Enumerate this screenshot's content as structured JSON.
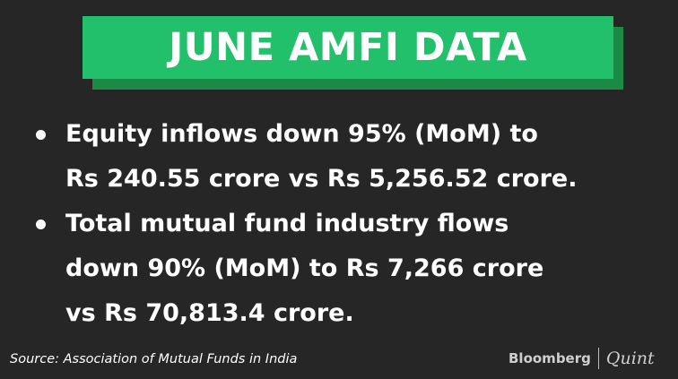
{
  "title": "JUNE AMFI DATA",
  "bullets": [
    {
      "line1": "Equity inflows down 95% (MoM) to",
      "line2": "Rs 240.55 crore vs Rs 5,256.52 crore."
    },
    {
      "line1": "Total mutual fund industry flows",
      "line2": "down 90% (MoM) to Rs 7,266 crore",
      "line3": "vs Rs 70,813.4 crore."
    }
  ],
  "source": "Source: Association of Mutual Funds in India",
  "logo": {
    "brand": "Bloomberg",
    "sub": "Quint"
  },
  "colors": {
    "background": "#262626",
    "title_bg": "#22c06a",
    "title_shadow": "#1c8a47",
    "text": "#ffffff"
  }
}
